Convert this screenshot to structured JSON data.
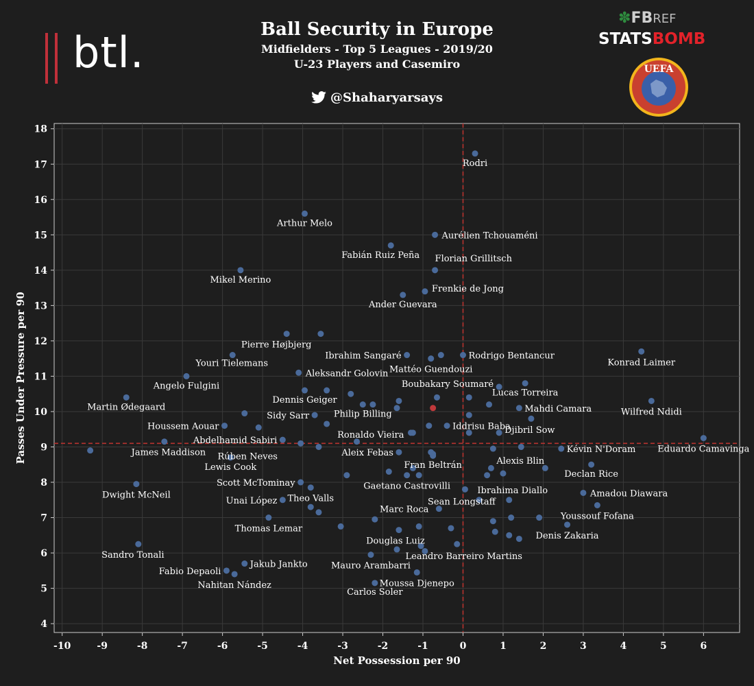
{
  "header": {
    "title": "Ball Security in Europe",
    "subtitle1": "Midfielders - Top 5 Leagues - 2019/20",
    "subtitle2": "U-23 Players and Casemiro",
    "handle": "@Shaharyarsays"
  },
  "logos": {
    "btl": "btl.",
    "fbref_fb": "FB",
    "fbref_ref": "REF",
    "statsbomb_stats": "STATS",
    "statsbomb_bomb": "BOMB",
    "uefa": "UEFA"
  },
  "colors": {
    "background": "#1e1e1e",
    "plot_border": "#cfcfcf",
    "grid": "#3a3a3a",
    "point": "#4a6a9a",
    "highlight": "#c0393b",
    "mean_line": "#b8332f",
    "text": "#ffffff"
  },
  "chart_data": {
    "type": "scatter",
    "title": "Ball Security in Europe",
    "xlabel": "Net Possession per 90",
    "ylabel": "Passes Under Pressure per 90",
    "xlim": [
      -10.2,
      6.9
    ],
    "ylim": [
      3.75,
      18.15
    ],
    "xticks": [
      -10,
      -9,
      -8,
      -7,
      -6,
      -5,
      -4,
      -3,
      -2,
      -1,
      0,
      1,
      2,
      3,
      4,
      5,
      6
    ],
    "yticks": [
      4,
      5,
      6,
      7,
      8,
      9,
      10,
      11,
      12,
      13,
      14,
      15,
      16,
      17,
      18
    ],
    "grid": true,
    "reference_lines": {
      "x": 0,
      "y": 9.1
    },
    "labeled_points": [
      {
        "label": "Rodri",
        "x": 0.3,
        "y": 17.3
      },
      {
        "label": "Arthur Melo",
        "x": -3.95,
        "y": 15.6
      },
      {
        "label": "Aurélien Tchouaméni",
        "x": -0.7,
        "y": 15.0
      },
      {
        "label": "Fabián Ruiz Peña",
        "x": -1.8,
        "y": 14.7
      },
      {
        "label": "Mikel Merino",
        "x": -5.55,
        "y": 14.0
      },
      {
        "label": "Florian Grillitsch",
        "x": -0.7,
        "y": 14.0
      },
      {
        "label": "Frenkie de Jong",
        "x": -0.95,
        "y": 13.4
      },
      {
        "label": "Ander Guevara",
        "x": -1.5,
        "y": 13.3
      },
      {
        "label": "Pierre Højbjerg",
        "x": -4.4,
        "y": 12.2
      },
      {
        "label": "Konrad Laimer",
        "x": 4.45,
        "y": 11.7
      },
      {
        "label": "Youri Tielemans",
        "x": -5.75,
        "y": 11.6
      },
      {
        "label": "Ibrahim Sangaré",
        "x": -1.4,
        "y": 11.6
      },
      {
        "label": "Rodrigo Bentancur",
        "x": 0.0,
        "y": 11.6
      },
      {
        "label": "Mattéo Guendouzi",
        "x": -0.8,
        "y": 11.5
      },
      {
        "label": "Aleksandr Golovin",
        "x": -4.1,
        "y": 11.1
      },
      {
        "label": "Angelo Fulgini",
        "x": -6.9,
        "y": 11.0
      },
      {
        "label": "Boubakary Soumaré",
        "x": 0.9,
        "y": 10.7
      },
      {
        "label": "Lucas Torreira",
        "x": 1.55,
        "y": 10.8
      },
      {
        "label": "Dennis Geiger",
        "x": -3.95,
        "y": 10.6
      },
      {
        "label": "Martin Ødegaard",
        "x": -8.4,
        "y": 10.4
      },
      {
        "label": "Wilfred Ndidi",
        "x": 4.7,
        "y": 10.3
      },
      {
        "label": "Mahdi Camara",
        "x": 1.4,
        "y": 10.1
      },
      {
        "label": "Sidy Sarr",
        "x": -3.7,
        "y": 9.9
      },
      {
        "label": "Philip Billing",
        "x": -2.5,
        "y": 10.2
      },
      {
        "label": "Houssem Aouar",
        "x": -5.95,
        "y": 9.6
      },
      {
        "label": "Iddrisu Baba",
        "x": -0.4,
        "y": 9.6
      },
      {
        "label": "Ronaldo Vieira",
        "x": -1.3,
        "y": 9.4
      },
      {
        "label": "Djibril Sow",
        "x": 0.9,
        "y": 9.4
      },
      {
        "label": "Abdelhamid Sabiri",
        "x": -4.5,
        "y": 9.2
      },
      {
        "label": "Eduardo Camavinga",
        "x": 6.0,
        "y": 9.25
      },
      {
        "label": "Kévin N'Doram",
        "x": 2.45,
        "y": 8.95
      },
      {
        "label": "James Maddison",
        "x": -9.3,
        "y": 8.9
      },
      {
        "label": "Rúben Neves",
        "x": -3.6,
        "y": 9.0
      },
      {
        "label": "Aleix Febas",
        "x": -1.6,
        "y": 8.85
      },
      {
        "label": "Alexis Blin",
        "x": 0.75,
        "y": 8.95
      },
      {
        "label": "Lewis Cook",
        "x": -5.8,
        "y": 8.7
      },
      {
        "label": "Declan Rice",
        "x": 3.2,
        "y": 8.5
      },
      {
        "label": "Fran Beltrán",
        "x": -0.75,
        "y": 8.8
      },
      {
        "label": "Scott McTominay",
        "x": -4.05,
        "y": 8.0
      },
      {
        "label": "Gaetano Castrovilli",
        "x": -1.4,
        "y": 8.2
      },
      {
        "label": "Dwight McNeil",
        "x": -8.15,
        "y": 7.95
      },
      {
        "label": "Ibrahima Diallo",
        "x": 1.15,
        "y": 7.5
      },
      {
        "label": "Amadou Diawara",
        "x": 3.0,
        "y": 7.7
      },
      {
        "label": "Theo Valls",
        "x": -3.8,
        "y": 7.85
      },
      {
        "label": "Sean Longstaff",
        "x": 0.05,
        "y": 7.8
      },
      {
        "label": "Unai López",
        "x": -4.5,
        "y": 7.5
      },
      {
        "label": "Marc Roca",
        "x": -0.6,
        "y": 7.25
      },
      {
        "label": "Youssouf Fofana",
        "x": 3.35,
        "y": 7.35
      },
      {
        "label": "Thomas Lemar",
        "x": -4.85,
        "y": 7.0
      },
      {
        "label": "Denis Zakaria",
        "x": 2.6,
        "y": 6.8
      },
      {
        "label": "Douglas Luiz",
        "x": -1.6,
        "y": 6.65
      },
      {
        "label": "Leandro Barreiro Martins",
        "x": -0.15,
        "y": 6.25
      },
      {
        "label": "Sandro Tonali",
        "x": -8.1,
        "y": 6.25
      },
      {
        "label": "Mauro Arambarri",
        "x": -2.3,
        "y": 5.95
      },
      {
        "label": "Jakub Jankto",
        "x": -5.45,
        "y": 5.7
      },
      {
        "label": "Fabio Depaoli",
        "x": -5.9,
        "y": 5.5
      },
      {
        "label": "Nahitan Nández",
        "x": -5.7,
        "y": 5.4
      },
      {
        "label": "Moussa Djenepo",
        "x": -1.15,
        "y": 5.45
      },
      {
        "label": "Carlos Soler",
        "x": -2.2,
        "y": 5.15
      }
    ],
    "unlabeled_points": [
      {
        "x": -3.55,
        "y": 12.2
      },
      {
        "x": -0.55,
        "y": 11.6
      },
      {
        "x": -3.4,
        "y": 10.6
      },
      {
        "x": -2.8,
        "y": 10.5
      },
      {
        "x": -1.6,
        "y": 10.3
      },
      {
        "x": -2.25,
        "y": 10.2
      },
      {
        "x": -1.65,
        "y": 10.1
      },
      {
        "x": -0.65,
        "y": 10.4
      },
      {
        "x": 0.15,
        "y": 10.4
      },
      {
        "x": 0.65,
        "y": 10.2
      },
      {
        "x": 1.7,
        "y": 9.8
      },
      {
        "x": -5.45,
        "y": 9.95
      },
      {
        "x": 0.15,
        "y": 9.9
      },
      {
        "x": -3.4,
        "y": 9.65
      },
      {
        "x": -0.85,
        "y": 9.6
      },
      {
        "x": -5.1,
        "y": 9.55
      },
      {
        "x": -2.65,
        "y": 9.15
      },
      {
        "x": 0.15,
        "y": 9.4
      },
      {
        "x": -1.25,
        "y": 9.4
      },
      {
        "x": -4.05,
        "y": 9.1
      },
      {
        "x": -7.45,
        "y": 9.15
      },
      {
        "x": 1.45,
        "y": 9.0
      },
      {
        "x": -0.8,
        "y": 8.85
      },
      {
        "x": -0.75,
        "y": 8.75
      },
      {
        "x": -1.25,
        "y": 8.4
      },
      {
        "x": 2.05,
        "y": 8.4
      },
      {
        "x": -1.85,
        "y": 8.3
      },
      {
        "x": 0.7,
        "y": 8.4
      },
      {
        "x": 0.6,
        "y": 8.2
      },
      {
        "x": 1.0,
        "y": 8.25
      },
      {
        "x": -2.9,
        "y": 8.2
      },
      {
        "x": -1.1,
        "y": 8.2
      },
      {
        "x": 0.4,
        "y": 7.5
      },
      {
        "x": -3.8,
        "y": 7.3
      },
      {
        "x": -3.6,
        "y": 7.15
      },
      {
        "x": -2.2,
        "y": 6.95
      },
      {
        "x": 1.9,
        "y": 7.0
      },
      {
        "x": 1.2,
        "y": 7.0
      },
      {
        "x": 0.75,
        "y": 6.9
      },
      {
        "x": -3.05,
        "y": 6.75
      },
      {
        "x": -1.1,
        "y": 6.75
      },
      {
        "x": -0.3,
        "y": 6.7
      },
      {
        "x": 0.8,
        "y": 6.6
      },
      {
        "x": 1.15,
        "y": 6.5
      },
      {
        "x": 1.4,
        "y": 6.4
      },
      {
        "x": -1.05,
        "y": 6.2
      },
      {
        "x": -1.65,
        "y": 6.1
      },
      {
        "x": -0.95,
        "y": 6.05
      }
    ],
    "highlight_point": {
      "x": -0.75,
      "y": 10.1
    }
  }
}
